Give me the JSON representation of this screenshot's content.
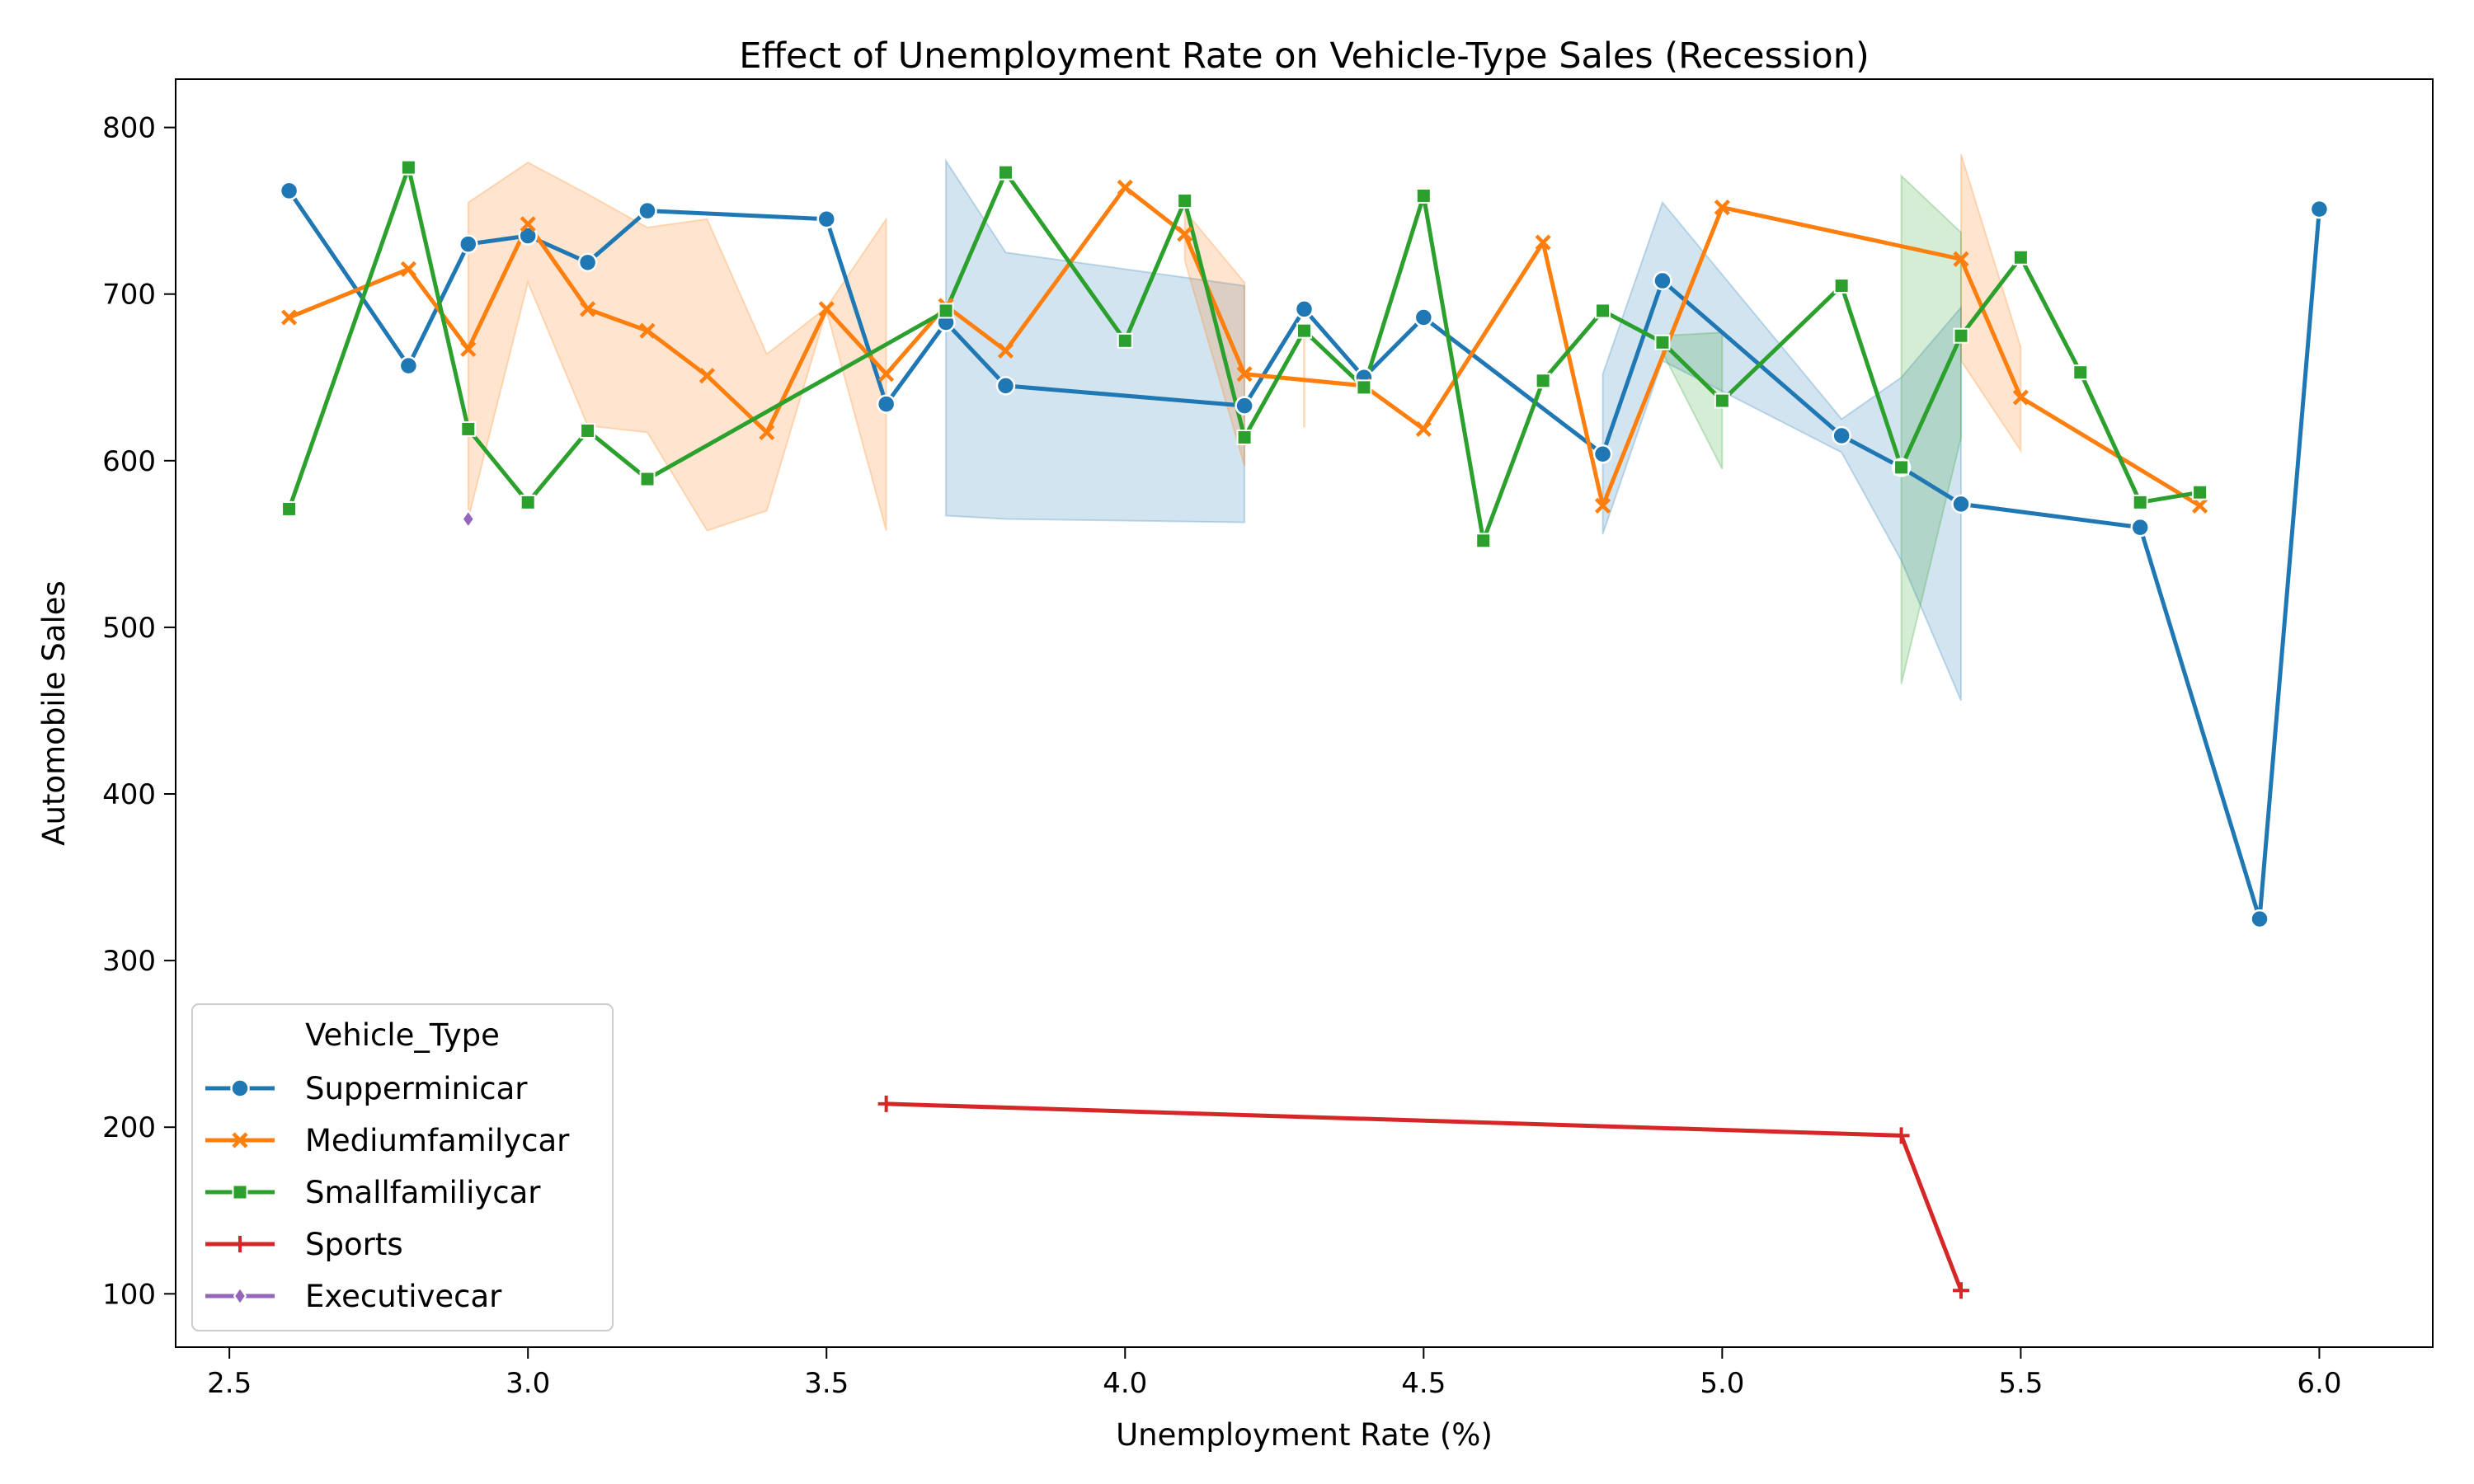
{
  "chart_data": {
    "type": "line",
    "title": "Effect of Unemployment Rate on Vehicle-Type Sales (Recession)",
    "xlabel": "Unemployment Rate (%)",
    "ylabel": "Automobile Sales",
    "xlim": [
      2.41,
      6.19
    ],
    "ylim": [
      68,
      829
    ],
    "x_ticks": [
      "2.5",
      "3.0",
      "3.5",
      "4.0",
      "4.5",
      "5.0",
      "5.5",
      "6.0"
    ],
    "x_tick_values": [
      2.5,
      3.0,
      3.5,
      4.0,
      4.5,
      5.0,
      5.5,
      6.0
    ],
    "y_ticks": [
      "100",
      "200",
      "300",
      "400",
      "500",
      "600",
      "700",
      "800"
    ],
    "y_tick_values": [
      100,
      200,
      300,
      400,
      500,
      600,
      700,
      800
    ],
    "grid": false,
    "legend": {
      "title": "Vehicle_Type",
      "placement": "lower-left"
    },
    "series": [
      {
        "name": "Supperminicar",
        "color": "#1f77b4",
        "marker": "circle",
        "x": [
          2.6,
          2.8,
          2.9,
          3.0,
          3.1,
          3.2,
          3.5,
          3.6,
          3.7,
          3.8,
          4.2,
          4.3,
          4.4,
          4.5,
          4.8,
          4.9,
          5.2,
          5.3,
          5.4,
          5.7,
          5.9,
          6.0
        ],
        "y": [
          762,
          657,
          730,
          735,
          719,
          750,
          745,
          634,
          683,
          645,
          633,
          691,
          650,
          686,
          604,
          708,
          615,
          596,
          574,
          560,
          325,
          751
        ],
        "band": [
          {
            "x": 3.7,
            "lo": 567,
            "hi": 780
          },
          {
            "x": 3.8,
            "lo": 565,
            "hi": 725
          },
          {
            "x": 4.2,
            "lo": 563,
            "hi": 705
          },
          {
            "x": 4.8,
            "lo": 556,
            "hi": 652
          },
          {
            "x": 4.9,
            "lo": 660,
            "hi": 755
          },
          {
            "x": 5.2,
            "lo": 605,
            "hi": 625
          },
          {
            "x": 5.3,
            "lo": 540,
            "hi": 650
          },
          {
            "x": 5.4,
            "lo": 456,
            "hi": 692
          }
        ]
      },
      {
        "name": "Mediumfamilycar",
        "color": "#ff7f0e",
        "marker": "x",
        "x": [
          2.6,
          2.8,
          2.9,
          3.0,
          3.1,
          3.2,
          3.3,
          3.4,
          3.5,
          3.6,
          3.7,
          3.8,
          4.0,
          4.1,
          4.2,
          4.4,
          4.5,
          4.7,
          4.8,
          5.0,
          5.4,
          5.5,
          5.8
        ],
        "y": [
          686,
          715,
          667,
          742,
          691,
          678,
          651,
          617,
          691,
          652,
          693,
          666,
          764,
          736,
          652,
          645,
          619,
          731,
          573,
          752,
          721,
          638,
          573
        ],
        "band": [
          {
            "x": 2.9,
            "lo": 565,
            "hi": 755
          },
          {
            "x": 3.0,
            "lo": 707,
            "hi": 779
          },
          {
            "x": 3.1,
            "lo": 621,
            "hi": 760
          },
          {
            "x": 3.2,
            "lo": 617,
            "hi": 740
          },
          {
            "x": 3.3,
            "lo": 558,
            "hi": 745
          },
          {
            "x": 3.4,
            "lo": 570,
            "hi": 664
          },
          {
            "x": 3.5,
            "lo": 690,
            "hi": 692
          },
          {
            "x": 3.6,
            "lo": 558,
            "hi": 745
          },
          {
            "x": 4.1,
            "lo": 720,
            "hi": 750
          },
          {
            "x": 4.2,
            "lo": 597,
            "hi": 707
          },
          {
            "x": 4.3,
            "lo": 620,
            "hi": 675
          },
          {
            "x": 5.4,
            "lo": 660,
            "hi": 784
          },
          {
            "x": 5.5,
            "lo": 606,
            "hi": 668
          }
        ]
      },
      {
        "name": "Smallfamiliycar",
        "color": "#2ca02c",
        "marker": "square",
        "x": [
          2.6,
          2.8,
          2.9,
          3.0,
          3.1,
          3.2,
          3.7,
          3.8,
          4.0,
          4.1,
          4.2,
          4.3,
          4.4,
          4.5,
          4.6,
          4.7,
          4.8,
          4.9,
          5.0,
          5.2,
          5.3,
          5.4,
          5.5,
          5.6,
          5.7,
          5.8
        ],
        "y": [
          571,
          776,
          619,
          575,
          618,
          589,
          690,
          773,
          672,
          756,
          614,
          678,
          644,
          759,
          552,
          648,
          690,
          671,
          636,
          705,
          596,
          675,
          722,
          653,
          575,
          581
        ],
        "band": [
          {
            "x": 4.9,
            "lo": 665,
            "hi": 675
          },
          {
            "x": 5.0,
            "lo": 595,
            "hi": 677
          },
          {
            "x": 5.3,
            "lo": 466,
            "hi": 771
          },
          {
            "x": 5.4,
            "lo": 614,
            "hi": 737
          }
        ]
      },
      {
        "name": "Sports",
        "color": "#d62728",
        "marker": "plus",
        "x": [
          3.6,
          5.3,
          5.4
        ],
        "y": [
          214,
          195,
          102
        ]
      },
      {
        "name": "Executivecar",
        "color": "#9467bd",
        "marker": "diamond",
        "x": [
          2.9
        ],
        "y": [
          565
        ]
      }
    ]
  }
}
